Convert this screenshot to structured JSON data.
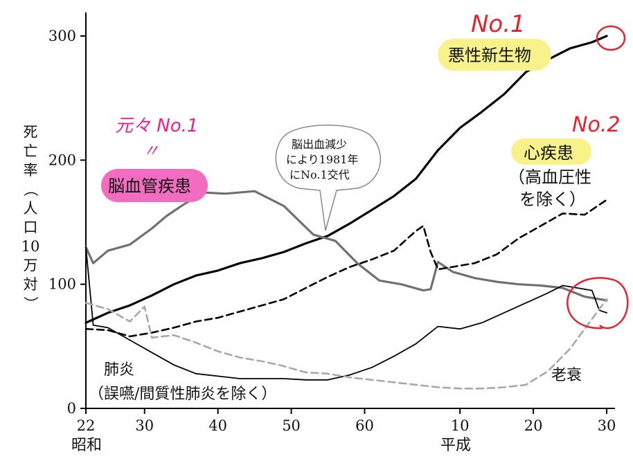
{
  "chart_data": {
    "type": "line",
    "y_axis": {
      "label_chars": [
        "死",
        "亡",
        "率",
        "（",
        "人",
        "口",
        "10",
        "万",
        "対",
        "）"
      ],
      "ticks": [
        "0",
        "100",
        "200",
        "300"
      ],
      "tick_values": [
        0,
        100,
        200,
        300
      ],
      "ylim": [
        0,
        315
      ]
    },
    "x_axis": {
      "ticks": [
        "22",
        "30",
        "40",
        "50",
        "60",
        "10",
        "20",
        "30"
      ],
      "tick_years": [
        1947,
        1955,
        1965,
        1975,
        1985,
        1998,
        2008,
        2018
      ],
      "era_labels": {
        "showa": "昭和",
        "heisei": "平成"
      },
      "xlim": [
        1947,
        2018
      ]
    },
    "series": [
      {
        "name": "悪性新生物",
        "style": "solid-thick",
        "color": "#000000",
        "x": [
          1947,
          1950,
          1953,
          1956,
          1959,
          1962,
          1965,
          1968,
          1971,
          1974,
          1977,
          1980,
          1983,
          1986,
          1989,
          1992,
          1995,
          1998,
          2001,
          2004,
          2007,
          2010,
          2013,
          2016,
          2018
        ],
        "y": [
          69,
          77,
          83,
          91,
          100,
          107,
          111,
          117,
          121,
          126,
          133,
          139,
          149,
          160,
          171,
          185,
          208,
          226,
          239,
          253,
          271,
          281,
          290,
          295,
          300
        ]
      },
      {
        "name": "脳血管疾患",
        "style": "solid",
        "color": "#707070",
        "x": [
          1947,
          1948,
          1950,
          1953,
          1956,
          1958,
          1960,
          1963,
          1966,
          1970,
          1974,
          1978,
          1981,
          1984,
          1987,
          1990,
          1993,
          1994,
          1995,
          1997,
          2000,
          2003,
          2006,
          2009,
          2012,
          2015,
          2018
        ],
        "y": [
          130,
          117,
          127,
          132,
          145,
          155,
          163,
          174,
          173,
          175,
          163,
          140,
          135,
          117,
          103,
          100,
          95,
          96,
          118,
          110,
          105,
          102,
          100,
          99,
          97,
          90,
          87
        ]
      },
      {
        "name": "心疾患",
        "style": "dashed",
        "color": "#000000",
        "x": [
          1947,
          1950,
          1953,
          1956,
          1959,
          1962,
          1965,
          1968,
          1971,
          1974,
          1977,
          1980,
          1983,
          1986,
          1989,
          1992,
          1993,
          1994,
          1995,
          1997,
          2000,
          2003,
          2006,
          2009,
          2012,
          2015,
          2018
        ],
        "y": [
          64,
          63,
          58,
          61,
          65,
          70,
          73,
          78,
          83,
          88,
          97,
          106,
          114,
          120,
          127,
          143,
          147,
          126,
          112,
          114,
          117,
          124,
          137,
          147,
          157,
          156,
          168
        ]
      },
      {
        "name": "肺炎",
        "style": "solid-thin",
        "color": "#000000",
        "x": [
          1947,
          1948,
          1950,
          1953,
          1956,
          1959,
          1962,
          1965,
          1968,
          1971,
          1974,
          1977,
          1980,
          1983,
          1986,
          1989,
          1992,
          1995,
          1998,
          2001,
          2004,
          2007,
          2010,
          2012,
          2014,
          2016,
          2017,
          2018
        ],
        "y": [
          130,
          67,
          65,
          55,
          45,
          35,
          28,
          26,
          24,
          24,
          24,
          23,
          23,
          27,
          33,
          42,
          52,
          66,
          64,
          69,
          77,
          85,
          93,
          99,
          97,
          95,
          79,
          77
        ]
      },
      {
        "name": "老衰",
        "style": "dashed-gray",
        "color": "#a0a0a0",
        "x": [
          1947,
          1950,
          1953,
          1955,
          1956,
          1959,
          1962,
          1965,
          1968,
          1971,
          1974,
          1977,
          1980,
          1983,
          1986,
          1989,
          1992,
          1995,
          1998,
          2001,
          2004,
          2007,
          2010,
          2013,
          2016,
          2018
        ],
        "y": [
          85,
          80,
          70,
          82,
          57,
          59,
          53,
          46,
          41,
          38,
          34,
          29,
          28,
          25,
          23,
          21,
          19,
          17,
          16,
          16,
          17,
          19,
          30,
          48,
          72,
          88
        ]
      }
    ],
    "labels": {
      "cancer": "悪性新生物",
      "stroke": "脳血管疾患",
      "heart_line1": "心疾患",
      "heart_line2": "（高血圧性",
      "heart_line3": "を除く）",
      "pneumonia_line1": "肺炎",
      "pneumonia_line2": "（誤嚥/間質性肺炎を除く）",
      "senility": "老衰"
    },
    "callout": {
      "line1": "脳出血減少",
      "line2": "により1981年",
      "line3": "にNo.1交代"
    },
    "handwritten": {
      "no1": "No.1",
      "no2": "No.2",
      "former": "元々 No.1",
      "ditto": "〃"
    },
    "highlight_colors": {
      "yellow": "#f7f28a",
      "pink": "#f26cc0",
      "red": "#e8212e",
      "magenta": "#e8218a"
    }
  }
}
